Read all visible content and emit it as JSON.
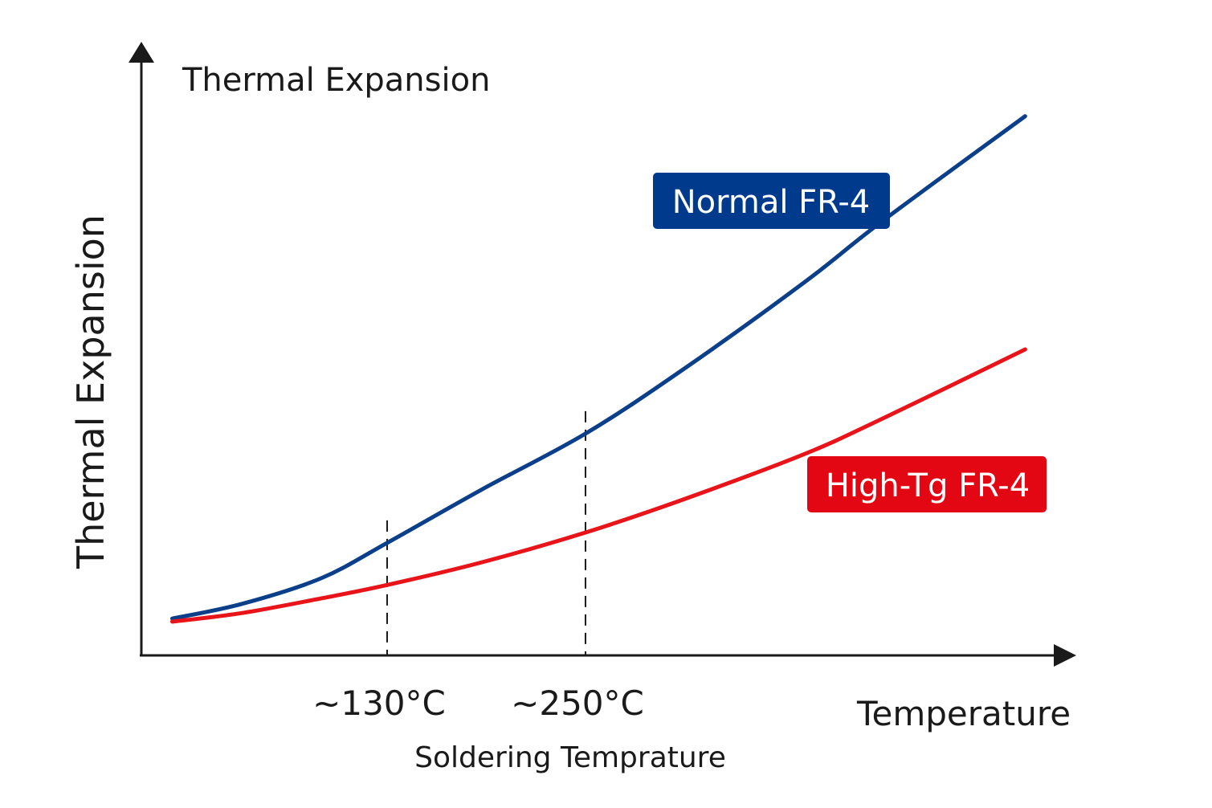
{
  "chart_data": {
    "type": "line",
    "title": "Thermal Expansion",
    "xlabel": "Temperature",
    "ylabel": "Thermal Expansion",
    "x_ticks": [
      {
        "value": 130,
        "label": "~130°C"
      },
      {
        "value": 250,
        "label": "~250°C"
      }
    ],
    "x_annotation": "Soldering Temprature",
    "grid": false,
    "series": [
      {
        "name": "Normal FR-4",
        "color": "#0b3f8a",
        "x": [
          0,
          42,
          90,
          130,
          187,
          250,
          309,
          382,
          430,
          516
        ],
        "y": [
          5.9,
          8.3,
          12.5,
          18.3,
          27,
          36.2,
          46.7,
          60.9,
          71.1,
          88.2
        ]
      },
      {
        "name": "High-Tg FR-4",
        "color": "#e8141a",
        "x": [
          0,
          42,
          90,
          130,
          187,
          250,
          309,
          382,
          430,
          516
        ],
        "y": [
          5.4,
          6.8,
          9.2,
          11.4,
          15.1,
          20,
          25.4,
          32.8,
          38.7,
          50
        ]
      }
    ],
    "label_colors": {
      "Normal FR-4": "#003a8c",
      "High-Tg FR-4": "#e30613"
    }
  }
}
